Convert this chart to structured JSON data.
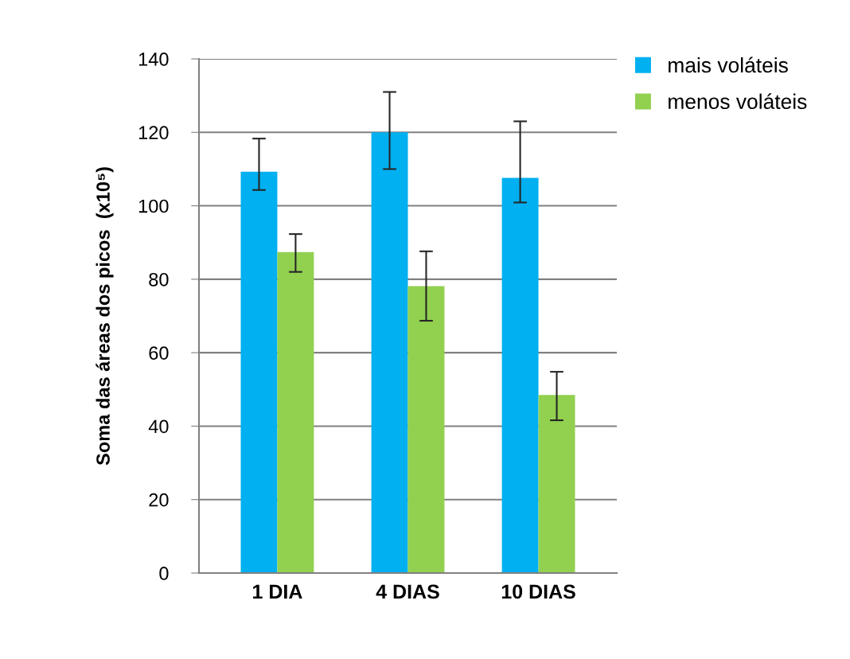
{
  "chart_data": {
    "type": "bar",
    "ylabel": "Soma das áreas dos picos  (x10⁵)",
    "categories": [
      "1 DIA",
      "4 DIAS",
      "10 DIAS"
    ],
    "series": [
      {
        "name": "mais voláteis",
        "color": "#00b0f0",
        "values": [
          109.3,
          120,
          107.6
        ],
        "errors": [
          [
            104.3,
            118.3
          ],
          [
            110,
            131
          ],
          [
            100.9,
            123
          ]
        ]
      },
      {
        "name": "menos voláteis",
        "color": "#92d050",
        "values": [
          87.4,
          78.1,
          48.5
        ],
        "errors": [
          [
            82,
            92.3
          ],
          [
            68.7,
            87.6
          ],
          [
            41.6,
            54.8
          ]
        ]
      }
    ],
    "ylim": [
      0,
      140
    ],
    "yticks": [
      0,
      20,
      40,
      60,
      80,
      100,
      120,
      140
    ],
    "grid": "y",
    "legend": "top right"
  }
}
